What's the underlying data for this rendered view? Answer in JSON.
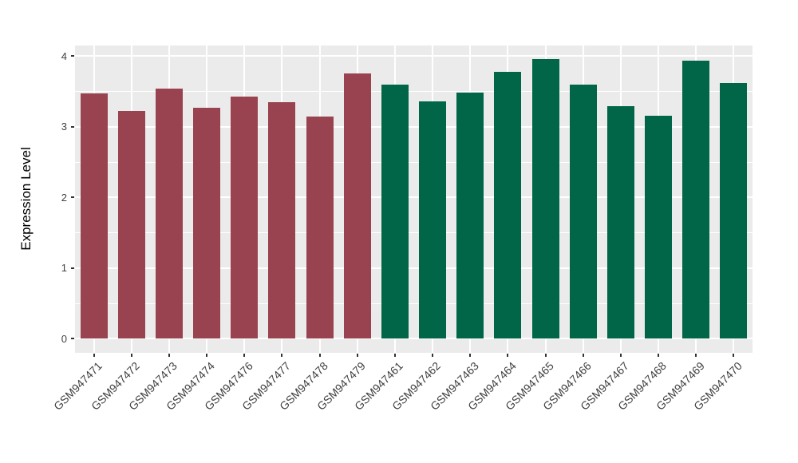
{
  "figure": {
    "background": "#FFFFFF",
    "panel_background": "#EBEBEB",
    "grid_color": "#FFFFFF",
    "tick_color": "#333333",
    "tick_text_color": "#404040",
    "axis_title_color": "#000000"
  },
  "chart_data": {
    "type": "bar",
    "title": "",
    "xlabel": "",
    "ylabel": "Expression Level",
    "ylim": [
      0,
      4
    ],
    "yticks": [
      0,
      1,
      2,
      3,
      4
    ],
    "yminorticks": [
      0.5,
      1.5,
      2.5,
      3.5
    ],
    "grid": "major+minor white on gray panel",
    "legend": "none",
    "categories": [
      "GSM947471",
      "GSM947472",
      "GSM947473",
      "GSM947474",
      "GSM947476",
      "GSM947477",
      "GSM947478",
      "GSM947479",
      "GSM947461",
      "GSM947462",
      "GSM947463",
      "GSM947464",
      "GSM947465",
      "GSM947466",
      "GSM947467",
      "GSM947468",
      "GSM947469",
      "GSM947470"
    ],
    "values": [
      3.47,
      3.22,
      3.54,
      3.27,
      3.43,
      3.35,
      3.15,
      3.76,
      3.6,
      3.36,
      3.48,
      3.78,
      3.96,
      3.6,
      3.29,
      3.16,
      3.93,
      3.62
    ],
    "groups": [
      "maroon",
      "maroon",
      "maroon",
      "maroon",
      "maroon",
      "maroon",
      "maroon",
      "maroon",
      "green",
      "green",
      "green",
      "green",
      "green",
      "green",
      "green",
      "green",
      "green",
      "green"
    ],
    "group_colors": {
      "maroon": "#9A4350",
      "green": "#006647"
    }
  }
}
